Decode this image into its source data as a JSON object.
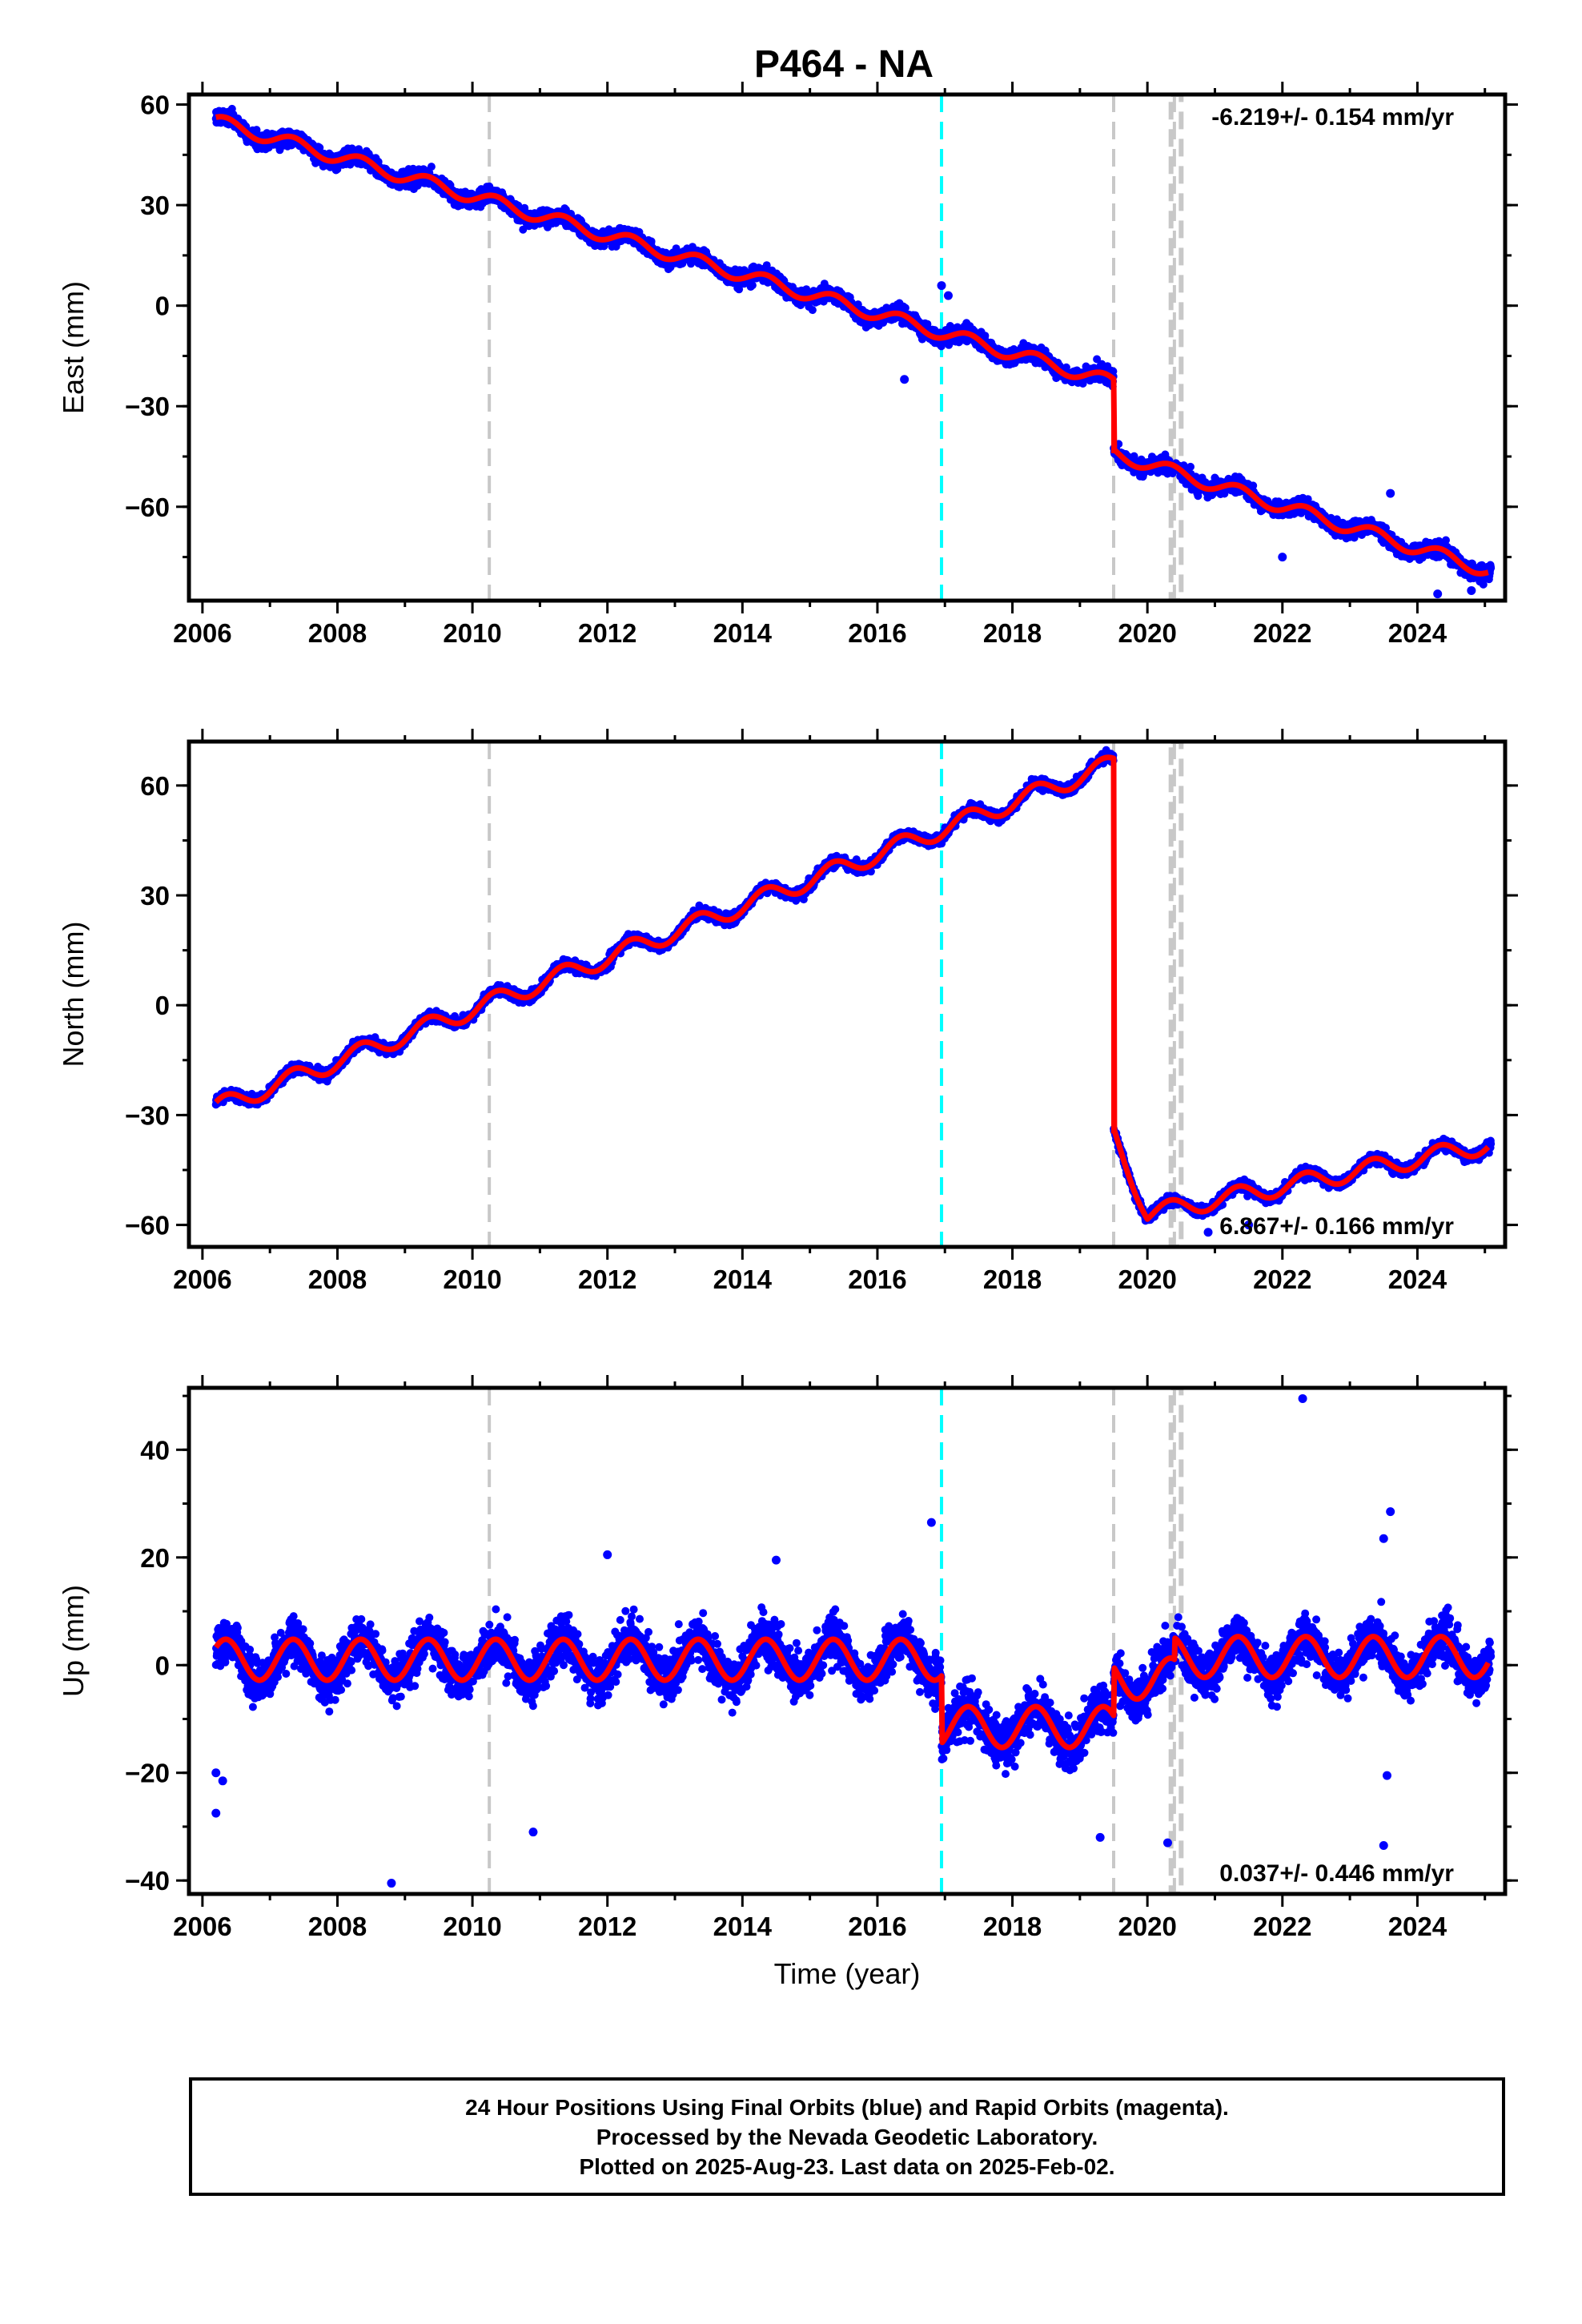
{
  "title": "P464 - NA",
  "colors": {
    "observations": "#0000ff",
    "model": "#ff0000",
    "offset_equipment": "#c8c8c8",
    "offset_earthquake": "#00ffff",
    "frame": "#000000"
  },
  "chart_data": [
    {
      "type": "scatter",
      "component": "east",
      "ylabel": "East (mm)",
      "xlabel": "",
      "xlim": [
        2005.8,
        2025.3
      ],
      "ylim": [
        -88,
        63
      ],
      "xticks": [
        "2006",
        "2008",
        "2010",
        "2012",
        "2014",
        "2016",
        "2018",
        "2020",
        "2022",
        "2024"
      ],
      "yticks": [
        "60",
        "30",
        "0",
        "−30",
        "−60"
      ],
      "ytick_values": [
        60,
        30,
        0,
        -30,
        -60
      ],
      "rate_label": "-6.219+/- 0.154 mm/yr",
      "rate_position": "top-right",
      "velocity_mm_yr": -6.219,
      "series": [
        {
          "model_breakpoints_year": [
            2006.2,
            2019.5,
            2019.5,
            2025.05
          ],
          "model_breakpoints_mm": [
            55,
            -23,
            -44,
            -79
          ],
          "seasonal_amplitude_mm": 2.0,
          "scatter_sd_mm": 2.3,
          "data_start_year": 2006.2,
          "data_end_year": 2025.09
        }
      ],
      "outliers": [
        [
          2016.95,
          6
        ],
        [
          2017.05,
          3
        ],
        [
          2016.4,
          -22
        ],
        [
          2023.6,
          -56
        ],
        [
          2024.3,
          -86
        ],
        [
          2024.8,
          -85
        ],
        [
          2022.0,
          -75
        ]
      ],
      "grey_offset_lines_year": [
        2010.25,
        2019.5,
        2020.4
      ],
      "cyan_offset_lines_year": [
        2016.95
      ],
      "grey_gap_band_year": [
        2020.35,
        2020.5
      ]
    },
    {
      "type": "scatter",
      "component": "north",
      "ylabel": "North (mm)",
      "xlabel": "",
      "xlim": [
        2005.8,
        2025.3
      ],
      "ylim": [
        -66,
        72
      ],
      "xticks": [
        "2006",
        "2008",
        "2010",
        "2012",
        "2014",
        "2016",
        "2018",
        "2020",
        "2022",
        "2024"
      ],
      "yticks": [
        "60",
        "30",
        "0",
        "−30",
        "−60"
      ],
      "ytick_values": [
        60,
        30,
        0,
        -30,
        -60
      ],
      "rate_label": "6.867+/- 0.166 mm/yr",
      "rate_position": "bottom-right",
      "velocity_mm_yr": 6.867,
      "series": [
        {
          "model_breakpoints_year": [
            2006.2,
            2019.5,
            2019.5,
            2020.0,
            2025.05
          ],
          "model_breakpoints_mm": [
            -28,
            66,
            -35,
            -57,
            -38
          ],
          "seasonal_amplitude_mm": 2.5,
          "scatter_sd_mm": 1.4,
          "data_start_year": 2006.2,
          "data_end_year": 2025.09
        }
      ],
      "outliers": [
        [
          2020.9,
          -62
        ],
        [
          2021.5,
          -60
        ]
      ],
      "grey_offset_lines_year": [
        2010.25,
        2019.5,
        2020.4
      ],
      "cyan_offset_lines_year": [
        2016.95
      ],
      "grey_gap_band_year": [
        2020.35,
        2020.5
      ]
    },
    {
      "type": "scatter",
      "component": "up",
      "ylabel": "Up (mm)",
      "xlabel": "Time (year)",
      "xlim": [
        2005.8,
        2025.3
      ],
      "ylim": [
        -42.5,
        51.5
      ],
      "xticks": [
        "2006",
        "2008",
        "2010",
        "2012",
        "2014",
        "2016",
        "2018",
        "2020",
        "2022",
        "2024"
      ],
      "yticks": [
        "40",
        "20",
        "0",
        "−20",
        "−40"
      ],
      "ytick_values": [
        40,
        20,
        0,
        -20,
        -40
      ],
      "rate_label": "0.037+/- 0.446 mm/yr",
      "rate_position": "bottom-right",
      "velocity_mm_yr": 0.037,
      "series": [
        {
          "model_segments": [
            {
              "start": 2006.2,
              "end": 2016.95,
              "offset_mm": 1.0
            },
            {
              "start": 2016.95,
              "end": 2019.5,
              "offset_mm": -11.5
            },
            {
              "start": 2019.5,
              "end": 2020.4,
              "offset_mm": -2.5
            },
            {
              "start": 2020.4,
              "end": 2025.05,
              "offset_mm": 1.5
            }
          ],
          "seasonal_amplitude_mm": 3.8,
          "scatter_sd_mm": 4.2,
          "data_start_year": 2006.2,
          "data_end_year": 2025.09
        }
      ],
      "outliers": [
        [
          2006.2,
          -27.5
        ],
        [
          2006.2,
          -20
        ],
        [
          2006.3,
          -21.5
        ],
        [
          2008.8,
          -40.5
        ],
        [
          2010.9,
          -31
        ],
        [
          2022.3,
          49.5
        ],
        [
          2023.6,
          28.5
        ],
        [
          2023.5,
          23.5
        ],
        [
          2023.55,
          -20.5
        ],
        [
          2023.5,
          -33.5
        ],
        [
          2016.8,
          26.5
        ],
        [
          2012.0,
          20.5
        ],
        [
          2014.5,
          19.5
        ],
        [
          2019.3,
          -32
        ],
        [
          2020.3,
          -33
        ]
      ],
      "grey_offset_lines_year": [
        2010.25,
        2019.5,
        2020.4
      ],
      "cyan_offset_lines_year": [
        2016.95
      ],
      "grey_gap_band_year": [
        2020.35,
        2020.5
      ]
    }
  ],
  "footer": {
    "line1": "24 Hour Positions Using Final Orbits (blue) and Rapid Orbits (magenta).",
    "line2": "Processed by the Nevada Geodetic Laboratory.",
    "line3": "Plotted on 2025-Aug-23. Last data on 2025-Feb-02."
  }
}
